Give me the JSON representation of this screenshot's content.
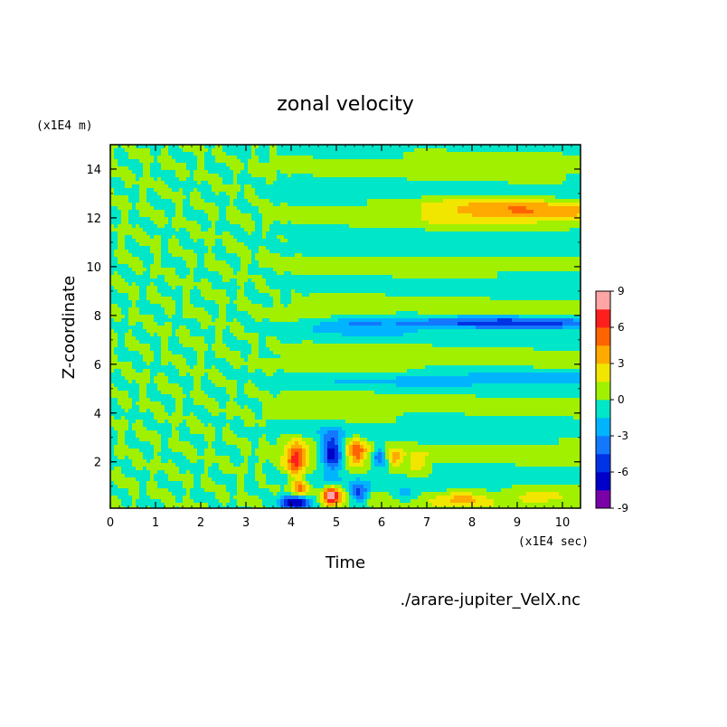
{
  "chart_data": {
    "type": "heatmap",
    "title": "zonal velocity",
    "xlabel": "Time",
    "ylabel": "Z-coordinate",
    "x_unit": "(x1E4 sec)",
    "y_unit": "(x1E4 m)",
    "xlim": [
      0,
      10.4
    ],
    "ylim": [
      0.1,
      15
    ],
    "x_ticks": [
      "0",
      "1",
      "2",
      "3",
      "4",
      "5",
      "6",
      "7",
      "8",
      "9",
      "10"
    ],
    "y_ticks": [
      "2",
      "4",
      "6",
      "8",
      "10",
      "12",
      "14"
    ],
    "source": "./arare-jupiter_VelX.nc",
    "colorbar": {
      "levels": [
        -9,
        -7.5,
        -6,
        -4.5,
        -3,
        -1.5,
        0,
        1.5,
        3,
        4.5,
        6,
        7.5,
        9
      ],
      "tick_labels": [
        "9",
        "6",
        "3",
        "0",
        "-3",
        "-6",
        "-9"
      ],
      "colors": [
        "#7a00a8",
        "#0000c8",
        "#0032e6",
        "#1478ff",
        "#00b4ff",
        "#00e6c8",
        "#a0f000",
        "#f0e600",
        "#ffaa00",
        "#ff6400",
        "#ff1e1e",
        "#ffa5a5"
      ]
    },
    "description_features": [
      {
        "x": [
          0,
          3.5
        ],
        "y": [
          0.1,
          15
        ],
        "value_range": [
          -1.5,
          1.5
        ],
        "note": "fine-scale wavy pattern"
      },
      {
        "x": [
          4.0,
          4.3
        ],
        "y": [
          1.5,
          3.0
        ],
        "value": 6
      },
      {
        "x": [
          4.6,
          5.0
        ],
        "y": [
          1.5,
          3.0
        ],
        "value": -6
      },
      {
        "x": [
          4.7,
          5.1
        ],
        "y": [
          0.1,
          1.0
        ],
        "value": 7.5
      },
      {
        "x": [
          3.8,
          4.5
        ],
        "y": [
          0.1,
          1.2
        ],
        "value": -6
      },
      {
        "x": [
          6.5,
          10.4
        ],
        "y": [
          7.5,
          7.9
        ],
        "value": -4.5
      },
      {
        "x": [
          7.0,
          10.4
        ],
        "y": [
          11.5,
          13.0
        ],
        "value": 3
      }
    ]
  }
}
